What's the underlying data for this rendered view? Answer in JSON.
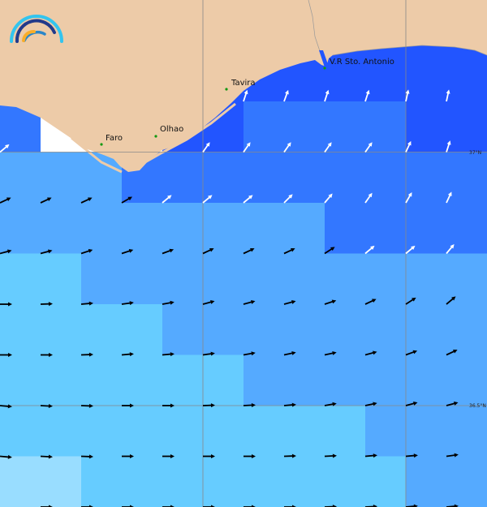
{
  "colors": {
    "land": "#edcba8",
    "no_data": "#ffffff",
    "grid": "#888888",
    "coastline": "#999999",
    "city_dot": "#119911",
    "palette": {
      "A": "#2255ff",
      "B": "#3377ff",
      "C": "#55aaff",
      "D": "#66ccff",
      "E": "#99ddff",
      "W": "#ffffff"
    }
  },
  "cells": [
    "AAAAAAAAAAAA",
    "AAAAAAAAAAAA",
    "BWWWAABBBBAA",
    "CCCBBBBBBBBB",
    "CCCCCCCCBBBB",
    "DDCCCCCCCCCC",
    "DDDDCCCCCCCC",
    "DDDDDDCCCCCC",
    "DDDDDDDDDCCC",
    "EEDDDDDDDDCC"
  ],
  "arrows": [
    {
      "row": 2,
      "cols": [
        6,
        7,
        8,
        9,
        10,
        11
      ],
      "angles": [
        72,
        70,
        72,
        72,
        78,
        78
      ],
      "color": "#ffffff"
    },
    {
      "row": 3,
      "cols": [
        0,
        5,
        6,
        7,
        8,
        9,
        10,
        11
      ],
      "angles": [
        40,
        55,
        55,
        55,
        55,
        55,
        65,
        72
      ],
      "color": "#ffffff"
    },
    {
      "row": 4,
      "cols": [
        0,
        1,
        2,
        3
      ],
      "angles": [
        25,
        25,
        25,
        30
      ],
      "color": "#000000"
    },
    {
      "row": 4,
      "cols": [
        4,
        5,
        6,
        7,
        8,
        9,
        10,
        11
      ],
      "angles": [
        40,
        40,
        40,
        45,
        50,
        55,
        60,
        65
      ],
      "color": "#ffffff"
    },
    {
      "row": 5,
      "cols": [
        0,
        1,
        2,
        3,
        4,
        5,
        6,
        7,
        8
      ],
      "angles": [
        15,
        15,
        18,
        18,
        20,
        25,
        25,
        25,
        33
      ],
      "color": "#000000"
    },
    {
      "row": 5,
      "cols": [
        9,
        10,
        11
      ],
      "angles": [
        40,
        40,
        50
      ],
      "color": "#ffffff"
    },
    {
      "row": 6,
      "cols": [
        0,
        1,
        2,
        3,
        4,
        5,
        6,
        7,
        8,
        9,
        10,
        11
      ],
      "angles": [
        0,
        2,
        5,
        8,
        10,
        15,
        15,
        15,
        18,
        25,
        33,
        40
      ],
      "color": "#000000"
    },
    {
      "row": 7,
      "cols": [
        0,
        1,
        2,
        3,
        4,
        5,
        6,
        7,
        8,
        9,
        10,
        11
      ],
      "angles": [
        0,
        0,
        2,
        5,
        5,
        8,
        10,
        12,
        12,
        15,
        20,
        25
      ],
      "color": "#000000"
    },
    {
      "row": 8,
      "cols": [
        0,
        1,
        2,
        3,
        4,
        5,
        6,
        7,
        8,
        9,
        10,
        11
      ],
      "angles": [
        -5,
        -3,
        -2,
        0,
        0,
        2,
        3,
        5,
        10,
        12,
        15,
        15
      ],
      "color": "#000000"
    },
    {
      "row": 9,
      "cols": [
        0,
        1,
        2,
        3,
        4,
        5,
        6,
        7,
        8,
        9,
        10,
        11
      ],
      "angles": [
        -5,
        -3,
        -2,
        0,
        0,
        0,
        0,
        2,
        3,
        5,
        5,
        8
      ],
      "color": "#000000"
    },
    {
      "row": 10,
      "cols": [
        1,
        2,
        3,
        4,
        5,
        6,
        7,
        8,
        9,
        10,
        11
      ],
      "angles": [
        0,
        0,
        0,
        0,
        0,
        0,
        0,
        2,
        3,
        5,
        5
      ],
      "color": "#000000"
    }
  ],
  "cities": [
    {
      "name": "Faro"
    },
    {
      "name": "Olhao"
    },
    {
      "name": "Tavira"
    },
    {
      "name": "V.R Sto. Antonio"
    }
  ],
  "latitude_labels": [
    "37°N",
    "36.5°N"
  ],
  "logo": {
    "icon": "wave-arcs-logo"
  }
}
